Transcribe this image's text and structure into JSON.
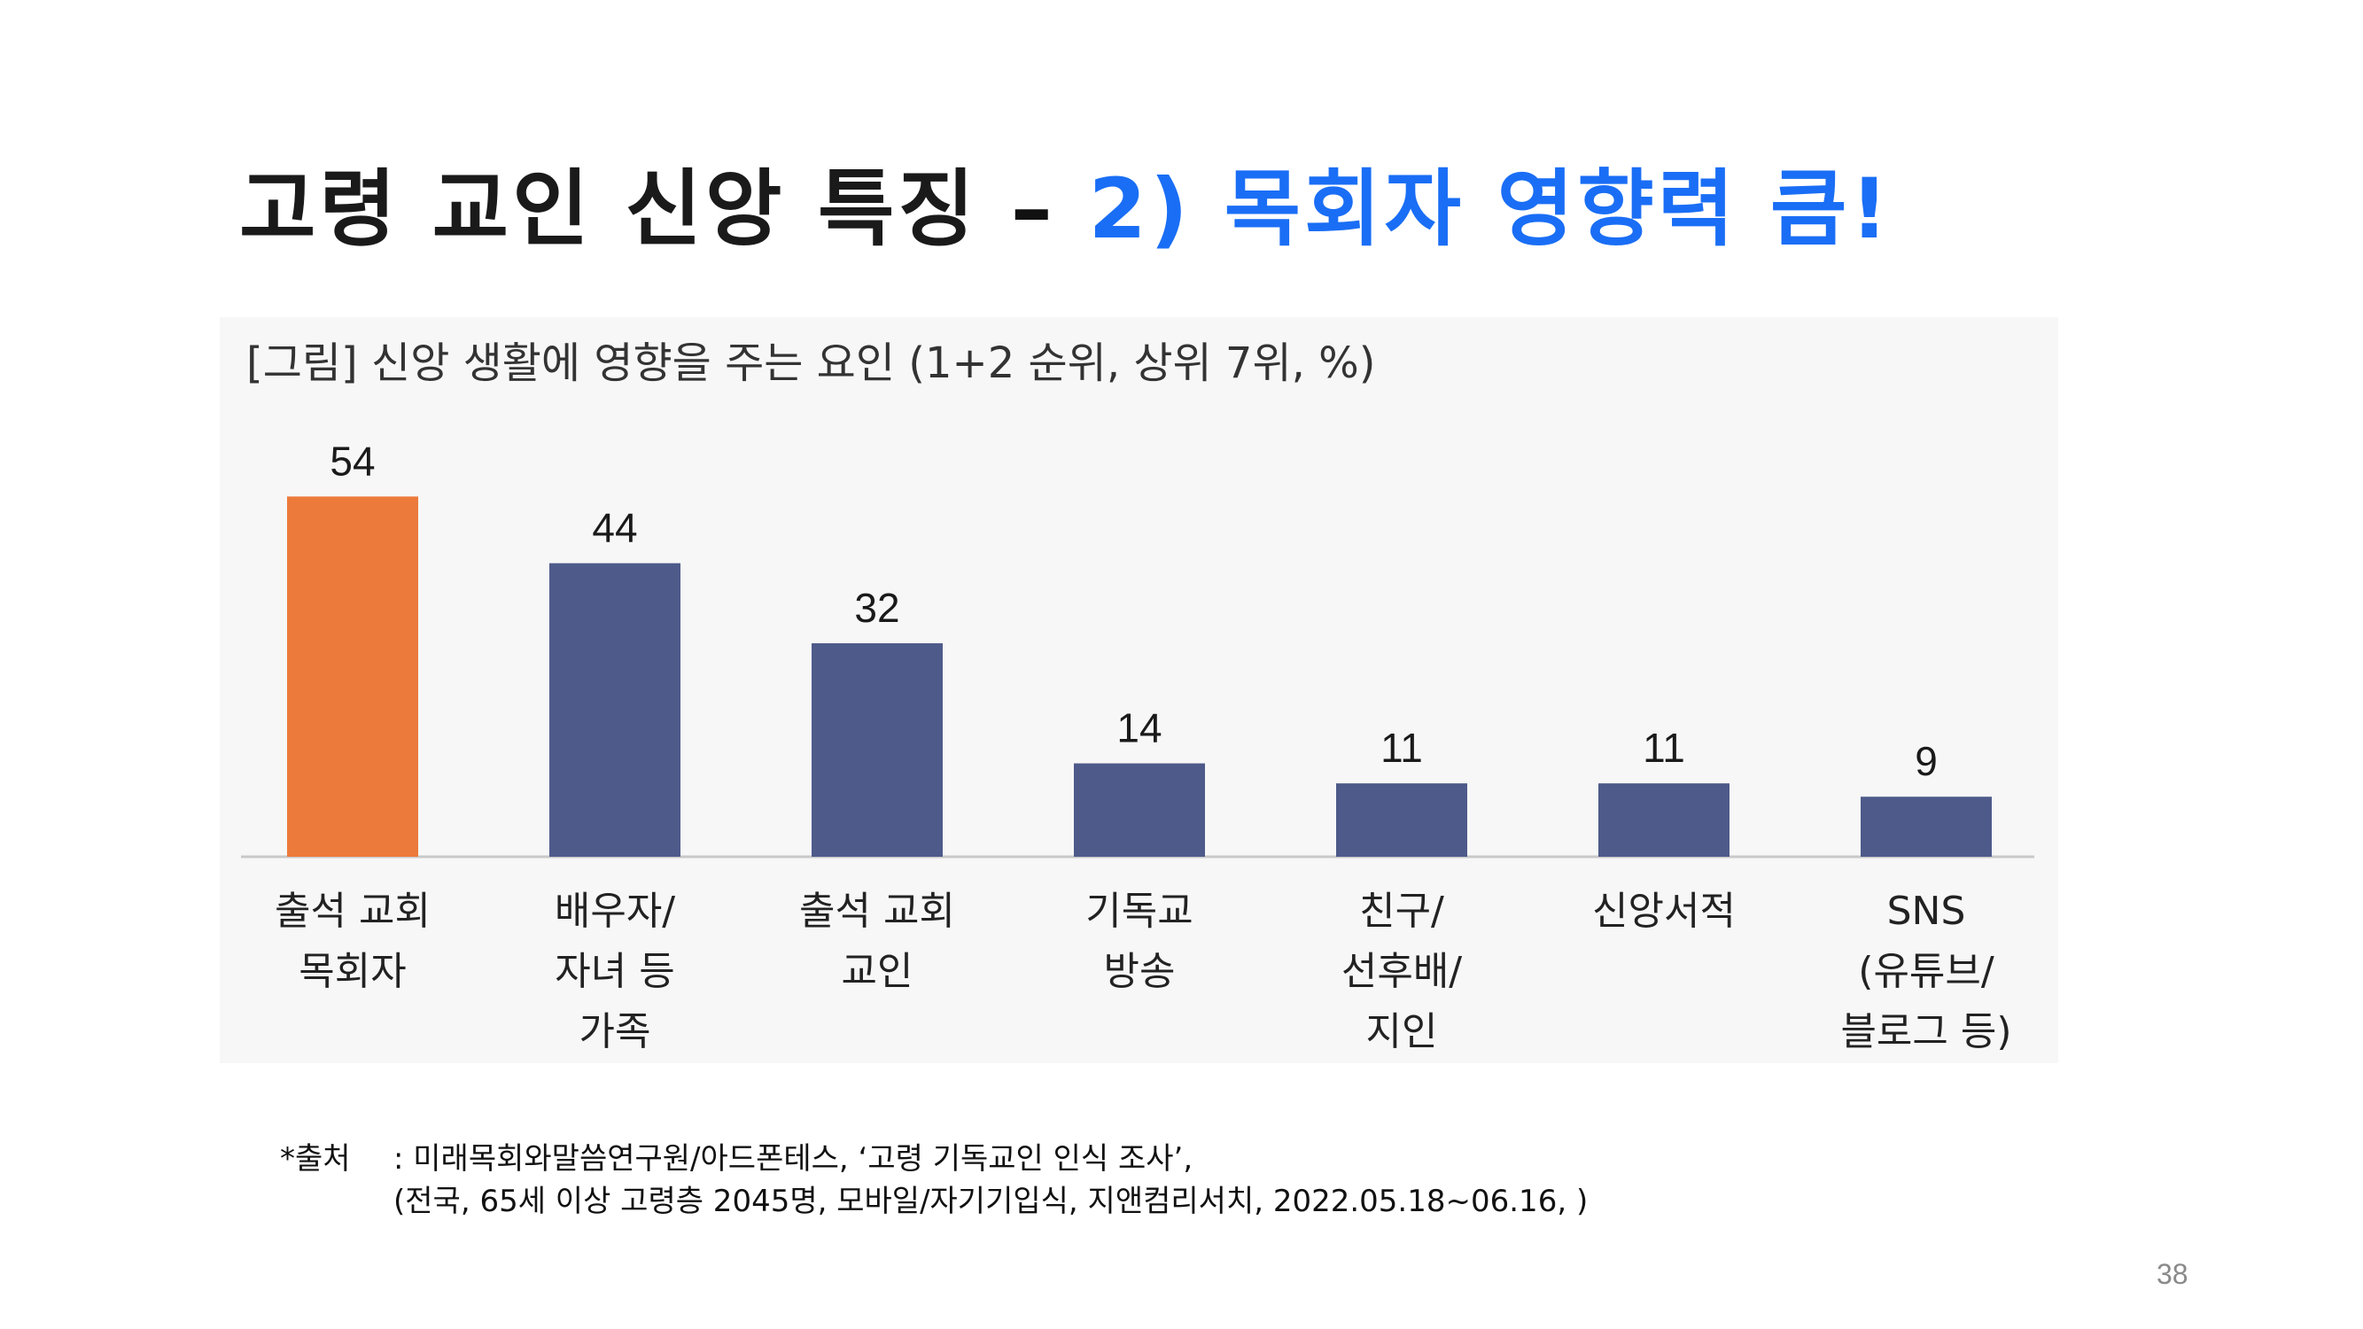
{
  "slide": {
    "title_main": "고령 교인 신앙 특징",
    "title_dash": "–",
    "title_accent": "2) 목회자 영향력 큼!",
    "page_number": "38"
  },
  "figure": {
    "caption": "[그림] 신앙 생활에 영향을 주는 요인 (1+2 순위, 상위 7위, %)"
  },
  "source": {
    "label": "*출처",
    "line1": ": 미래목회와말씀연구원/아드폰테스, ‘고령 기독교인 인식 조사’,",
    "line2": "(전국, 65세 이상 고령층 2045명, 모바일/자기기입식, 지앤컴리서치, 2022.05.18~06.16, )"
  },
  "colors": {
    "title_accent": "#1a6ef5",
    "highlight_bar": "#ec7a3a",
    "default_bar": "#4e5a8a",
    "background_panel": "#f7f7f7"
  },
  "chart_data": {
    "type": "bar",
    "title": "[그림] 신앙 생활에 영향을 주는 요인 (1+2 순위, 상위 7위, %)",
    "categories": [
      [
        "출석 교회",
        "목회자"
      ],
      [
        "배우자/",
        "자녀 등",
        "가족"
      ],
      [
        "출석 교회",
        "교인"
      ],
      [
        "기독교",
        "방송"
      ],
      [
        "친구/",
        "선후배/",
        "지인"
      ],
      [
        "신앙서적"
      ],
      [
        "SNS",
        "(유튜브/",
        "블로그 등)"
      ]
    ],
    "values": [
      54,
      44,
      32,
      14,
      11,
      11,
      9
    ],
    "highlight_index": 0,
    "ylim": [
      0,
      60
    ],
    "grid": false,
    "legend": "none"
  }
}
